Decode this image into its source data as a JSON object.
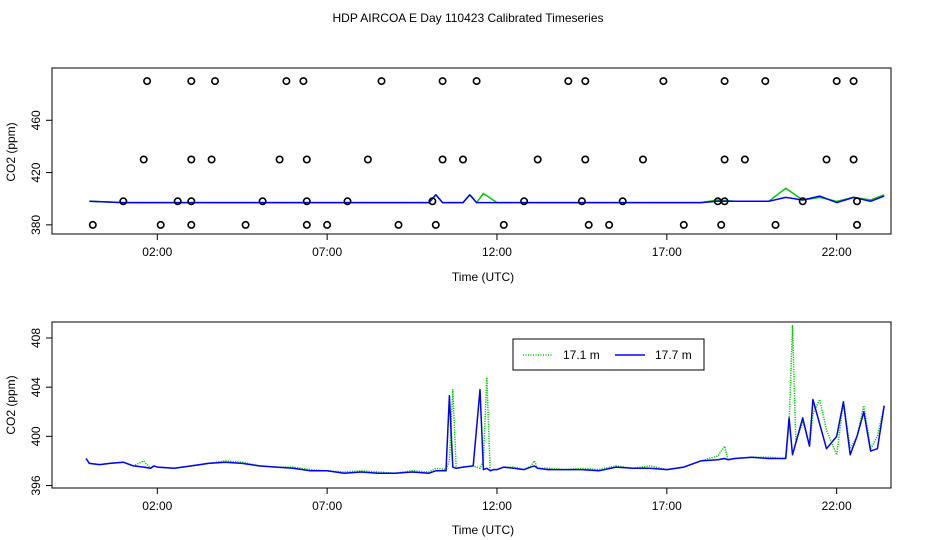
{
  "figure": {
    "title": "HDP AIRCOA E  Day 110423  Calibrated Timeseries"
  },
  "chart_data": [
    {
      "type": "line",
      "panel": "top",
      "xlabel": "Time (UTC)",
      "ylabel": "CO2 (ppm)",
      "xlim": [
        -1.1,
        23.6
      ],
      "ylim": [
        373,
        500
      ],
      "x_tick_labels": [
        "02:00",
        "07:00",
        "12:00",
        "17:00",
        "22:00"
      ],
      "x_ticks": [
        2,
        7,
        12,
        17,
        22
      ],
      "y_tick_labels": [
        "380",
        "420",
        "460"
      ],
      "y_ticks": [
        380,
        420,
        460
      ],
      "grid": false,
      "series": [
        {
          "color": "#00cc00",
          "x": [
            0.0,
            1.0,
            2.0,
            3.0,
            4.0,
            5.0,
            6.0,
            7.0,
            8.0,
            9.0,
            10.0,
            10.2,
            10.4,
            11.0,
            11.2,
            11.4,
            11.6,
            12.0,
            13.0,
            14.0,
            15.0,
            16.0,
            17.0,
            18.0,
            18.5,
            19.0,
            19.8,
            20.0,
            20.5,
            21.0,
            21.5,
            22.0,
            22.5,
            23.0,
            23.4
          ],
          "values": [
            398,
            397,
            397,
            397,
            397,
            397,
            397,
            397,
            397,
            397,
            397,
            403,
            397,
            397,
            403,
            397,
            404,
            397,
            397,
            397,
            397,
            397,
            397,
            397,
            399,
            398,
            398,
            398,
            408,
            399,
            401,
            398,
            401,
            399,
            403
          ]
        },
        {
          "color": "#0000ff",
          "x": [
            0.0,
            1.0,
            2.0,
            3.0,
            4.0,
            5.0,
            6.0,
            7.0,
            8.0,
            9.0,
            10.0,
            10.2,
            10.4,
            11.0,
            11.2,
            11.4,
            11.6,
            12.0,
            13.0,
            14.0,
            15.0,
            16.0,
            17.0,
            18.0,
            18.5,
            19.0,
            19.8,
            20.0,
            20.5,
            21.0,
            21.5,
            22.0,
            22.5,
            23.0,
            23.4
          ],
          "values": [
            398,
            397,
            397,
            397,
            397,
            397,
            397,
            397,
            397,
            397,
            397,
            403,
            397,
            397,
            403,
            397,
            397,
            397,
            397,
            397,
            397,
            397,
            397,
            397,
            398,
            398,
            398,
            398,
            401,
            399,
            402,
            397,
            401,
            398,
            402
          ]
        }
      ],
      "markers": {
        "style": "open-circle",
        "points": [
          [
            0.1,
            380
          ],
          [
            1.0,
            398
          ],
          [
            1.6,
            430
          ],
          [
            1.7,
            490
          ],
          [
            2.1,
            380
          ],
          [
            2.6,
            398
          ],
          [
            3.0,
            490
          ],
          [
            3.0,
            430
          ],
          [
            3.0,
            380
          ],
          [
            3.0,
            398
          ],
          [
            3.6,
            430
          ],
          [
            3.7,
            490
          ],
          [
            4.6,
            380
          ],
          [
            5.1,
            398
          ],
          [
            5.6,
            430
          ],
          [
            5.8,
            490
          ],
          [
            6.3,
            490
          ],
          [
            6.4,
            430
          ],
          [
            6.4,
            380
          ],
          [
            6.4,
            398
          ],
          [
            7.0,
            380
          ],
          [
            7.6,
            398
          ],
          [
            8.2,
            430
          ],
          [
            8.6,
            490
          ],
          [
            9.1,
            380
          ],
          [
            10.1,
            398
          ],
          [
            10.2,
            380
          ],
          [
            10.4,
            430
          ],
          [
            10.4,
            490
          ],
          [
            11.0,
            430
          ],
          [
            11.4,
            490
          ],
          [
            12.2,
            380
          ],
          [
            12.8,
            398
          ],
          [
            13.2,
            430
          ],
          [
            14.1,
            490
          ],
          [
            14.5,
            398
          ],
          [
            14.6,
            430
          ],
          [
            14.6,
            490
          ],
          [
            14.7,
            380
          ],
          [
            15.3,
            380
          ],
          [
            15.7,
            398
          ],
          [
            16.3,
            430
          ],
          [
            16.9,
            490
          ],
          [
            17.5,
            380
          ],
          [
            18.5,
            398
          ],
          [
            18.6,
            380
          ],
          [
            18.7,
            430
          ],
          [
            18.7,
            490
          ],
          [
            18.7,
            398
          ],
          [
            19.3,
            430
          ],
          [
            19.9,
            490
          ],
          [
            20.2,
            380
          ],
          [
            21.0,
            398
          ],
          [
            21.7,
            430
          ],
          [
            22.0,
            490
          ],
          [
            22.5,
            490
          ],
          [
            22.5,
            430
          ],
          [
            22.6,
            398
          ],
          [
            22.6,
            380
          ]
        ]
      }
    },
    {
      "type": "line",
      "panel": "bottom",
      "xlabel": "Time (UTC)",
      "ylabel": "CO2 (ppm)",
      "xlim": [
        -1.1,
        23.6
      ],
      "ylim": [
        395.8,
        409.3
      ],
      "x_tick_labels": [
        "02:00",
        "07:00",
        "12:00",
        "17:00",
        "22:00"
      ],
      "x_ticks": [
        2,
        7,
        12,
        17,
        22
      ],
      "y_tick_labels": [
        "396",
        "400",
        "404",
        "408"
      ],
      "y_ticks": [
        396,
        400,
        404,
        408
      ],
      "grid": false,
      "legend": {
        "position": "top-right",
        "entries": [
          "17.1 m",
          "17.7 m"
        ]
      },
      "series": [
        {
          "name": "17.1 m",
          "color": "#00cc00",
          "style": "dotted",
          "x": [
            -0.1,
            0.0,
            0.3,
            0.6,
            1.0,
            1.3,
            1.6,
            1.8,
            1.9,
            2.0,
            2.5,
            3.0,
            3.5,
            4.0,
            4.5,
            5.0,
            5.5,
            6.0,
            6.5,
            7.0,
            7.5,
            8.0,
            8.5,
            9.0,
            9.5,
            10.0,
            10.2,
            10.5,
            10.6,
            10.7,
            10.8,
            11.0,
            11.3,
            11.5,
            11.6,
            11.7,
            11.8,
            11.9,
            12.0,
            12.2,
            12.5,
            12.8,
            13.0,
            13.1,
            13.2,
            13.5,
            14.0,
            14.5,
            15.0,
            15.5,
            16.0,
            16.5,
            17.0,
            17.5,
            18.0,
            18.5,
            18.7,
            18.8,
            19.0,
            19.5,
            20.0,
            20.5,
            20.6,
            20.7,
            20.8,
            21.0,
            21.2,
            21.3,
            21.5,
            21.7,
            22.0,
            22.2,
            22.4,
            22.6,
            22.8,
            23.0,
            23.2,
            23.4
          ],
          "values": [
            398.2,
            397.8,
            397.7,
            397.8,
            397.9,
            397.6,
            398.0,
            397.4,
            397.6,
            397.5,
            397.4,
            397.6,
            397.8,
            398.0,
            397.9,
            397.6,
            397.5,
            397.5,
            397.3,
            397.2,
            397.1,
            397.2,
            397.1,
            397.0,
            397.2,
            397.1,
            397.4,
            397.3,
            398.0,
            403.8,
            397.4,
            397.5,
            397.6,
            397.4,
            398.0,
            404.8,
            397.2,
            397.3,
            397.3,
            397.5,
            397.5,
            397.3,
            397.6,
            398.0,
            397.4,
            397.4,
            397.3,
            397.4,
            397.3,
            397.6,
            397.4,
            397.6,
            397.3,
            397.5,
            398.0,
            398.4,
            399.2,
            398.1,
            398.2,
            398.3,
            398.3,
            398.2,
            401.0,
            409.0,
            399.5,
            401.2,
            399.3,
            401.8,
            403.0,
            400.5,
            398.5,
            402.8,
            399.0,
            400.0,
            402.5,
            399.0,
            400.0,
            402.5
          ]
        },
        {
          "name": "17.7 m",
          "color": "#0000ff",
          "style": "solid",
          "x": [
            -0.1,
            0.0,
            0.3,
            0.6,
            1.0,
            1.3,
            1.6,
            1.8,
            1.9,
            2.0,
            2.5,
            3.0,
            3.5,
            4.0,
            4.5,
            5.0,
            5.5,
            6.0,
            6.5,
            7.0,
            7.5,
            8.0,
            8.5,
            9.0,
            9.5,
            10.0,
            10.2,
            10.5,
            10.6,
            10.7,
            10.8,
            11.0,
            11.3,
            11.5,
            11.6,
            11.7,
            11.8,
            11.9,
            12.0,
            12.2,
            12.5,
            12.8,
            13.0,
            13.1,
            13.2,
            13.5,
            14.0,
            14.5,
            15.0,
            15.5,
            16.0,
            16.5,
            17.0,
            17.5,
            18.0,
            18.5,
            18.7,
            18.8,
            19.0,
            19.5,
            20.0,
            20.5,
            20.6,
            20.7,
            20.8,
            21.0,
            21.2,
            21.3,
            21.5,
            21.7,
            22.0,
            22.2,
            22.4,
            22.6,
            22.8,
            23.0,
            23.2,
            23.4
          ],
          "values": [
            398.2,
            397.8,
            397.7,
            397.8,
            397.9,
            397.6,
            397.5,
            397.4,
            397.6,
            397.5,
            397.4,
            397.6,
            397.8,
            397.9,
            397.8,
            397.6,
            397.5,
            397.4,
            397.2,
            397.2,
            397.0,
            397.1,
            397.0,
            397.0,
            397.1,
            397.0,
            397.2,
            397.2,
            403.3,
            397.5,
            397.4,
            397.5,
            397.6,
            403.8,
            397.3,
            397.4,
            397.2,
            397.3,
            397.3,
            397.5,
            397.4,
            397.3,
            397.5,
            397.6,
            397.4,
            397.3,
            397.3,
            397.3,
            397.2,
            397.5,
            397.4,
            397.4,
            397.3,
            397.5,
            398.0,
            398.1,
            398.2,
            398.1,
            398.2,
            398.3,
            398.2,
            398.2,
            401.5,
            398.5,
            399.5,
            401.5,
            399.2,
            403.0,
            401.0,
            399.0,
            400.0,
            402.8,
            398.5,
            400.0,
            402.0,
            398.8,
            399.0,
            402.5
          ]
        }
      ]
    }
  ]
}
